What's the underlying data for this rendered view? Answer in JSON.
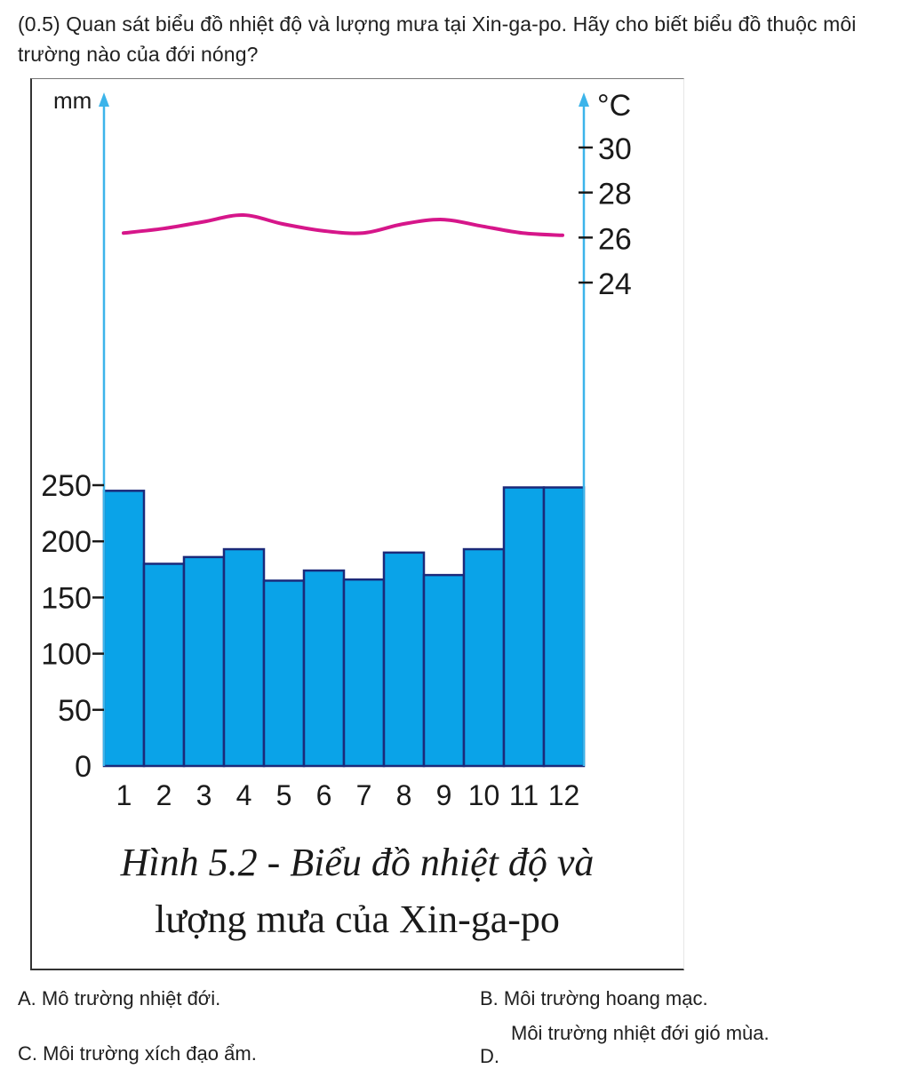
{
  "question": {
    "text": "(0.5) Quan sát biểu đồ nhiệt độ và lượng mưa tại Xin-ga-po. Hãy cho biết biểu đồ thuộc môi trường nào của đới nóng?"
  },
  "chart_data": {
    "type": "bar",
    "categories": [
      "1",
      "2",
      "3",
      "4",
      "5",
      "6",
      "7",
      "8",
      "9",
      "10",
      "11",
      "12"
    ],
    "series": [
      {
        "kind": "bar",
        "axis": "left",
        "color": "#0aa3e8",
        "outline": "#1b2a7a",
        "values": [
          245,
          180,
          186,
          193,
          165,
          174,
          166,
          190,
          170,
          193,
          248,
          248
        ]
      },
      {
        "kind": "line",
        "axis": "right",
        "color": "#d6168a",
        "values": [
          26.2,
          26.4,
          26.7,
          27.0,
          26.6,
          26.3,
          26.2,
          26.6,
          26.8,
          26.5,
          26.2,
          26.1
        ]
      }
    ],
    "left_axis": {
      "unit": "mm",
      "ticks": [
        "0",
        "50",
        "100",
        "150",
        "200",
        "250"
      ],
      "range": [
        0,
        250
      ],
      "color": "#3cb4ea"
    },
    "right_axis": {
      "unit": "°C",
      "ticks": [
        "24",
        "26",
        "28",
        "30"
      ],
      "range": [
        24,
        30
      ],
      "color": "#3cb4ea"
    },
    "title": "",
    "grid": false
  },
  "caption": {
    "line1": "Hình 5.2 - Biểu đồ nhiệt độ và",
    "line2": "lượng mưa của Xin-ga-po"
  },
  "options": {
    "a": "A. Mô trường nhiệt đới.",
    "b": "B. Môi trường hoang mạc.",
    "c": "C. Môi trường xích đạo ẩm.",
    "d_letter": "D.",
    "d_text": "Môi trường nhiệt đới gió mùa."
  }
}
